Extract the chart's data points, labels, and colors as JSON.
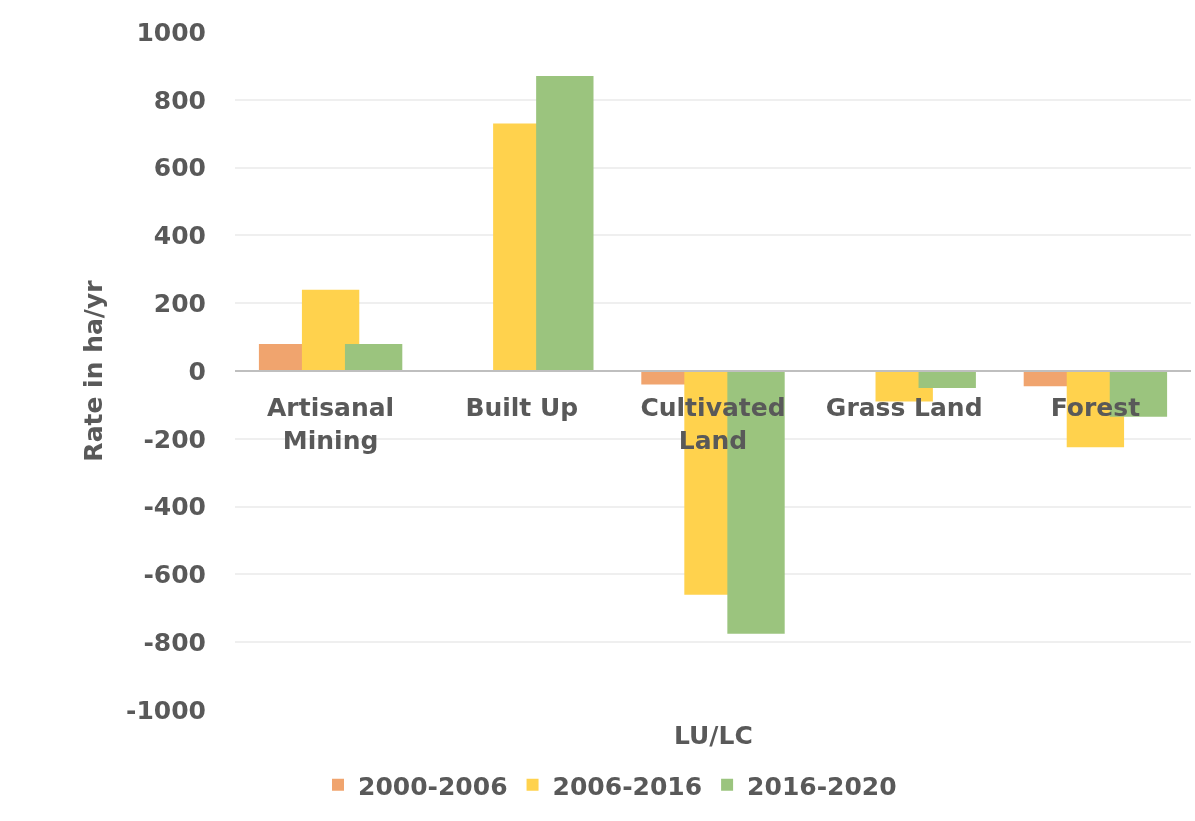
{
  "chart_data": {
    "type": "bar",
    "xlabel": "LU/LC",
    "ylabel": "Rate in ha/yr",
    "categories": [
      "Artisanal Mining",
      "Built Up",
      "Cultivated Land",
      "Grass Land",
      "Forest"
    ],
    "series": [
      {
        "name": "2000-2006",
        "color": "#f0a46e",
        "values": [
          80,
          null,
          -40,
          null,
          -45
        ]
      },
      {
        "name": "2006-2016",
        "color": "#ffd24d",
        "values": [
          240,
          730,
          -660,
          -90,
          -225
        ]
      },
      {
        "name": "2016-2020",
        "color": "#9bc47e",
        "values": [
          80,
          870,
          -775,
          -50,
          -135
        ]
      }
    ],
    "ylim": [
      -1000,
      1000
    ],
    "yticks": [
      -1000,
      -800,
      -600,
      -400,
      -200,
      0,
      200,
      400,
      600,
      800,
      1000
    ],
    "grid": "y",
    "legend": "bottom"
  }
}
